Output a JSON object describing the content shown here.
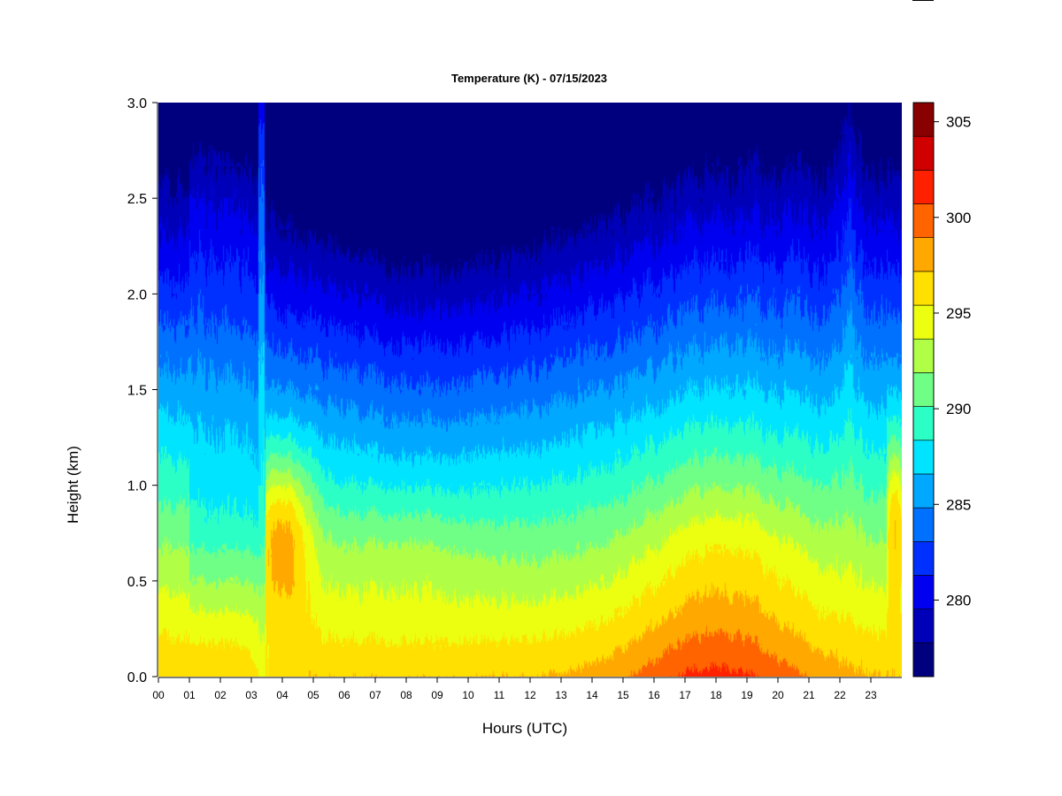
{
  "chart_data": {
    "type": "heatmap",
    "title": "Temperature (K) - 07/15/2023",
    "xlabel": "Hours (UTC)",
    "ylabel": "Height (km)",
    "xlim": [
      0,
      24
    ],
    "ylim": [
      0,
      3
    ],
    "x_ticks": [
      "00",
      "01",
      "02",
      "03",
      "04",
      "05",
      "06",
      "07",
      "08",
      "09",
      "10",
      "11",
      "12",
      "13",
      "14",
      "15",
      "16",
      "17",
      "18",
      "19",
      "20",
      "21",
      "22",
      "23"
    ],
    "y_ticks": [
      "0.0",
      "0.5",
      "1.0",
      "1.5",
      "2.0",
      "2.5",
      "3.0"
    ],
    "colorbar": {
      "min": 276,
      "max": 306,
      "level_step": 2,
      "tick_values": [
        280,
        285,
        290,
        295,
        300,
        305
      ],
      "tick_labels": [
        "280",
        "285",
        "290",
        "295",
        "300",
        "305"
      ],
      "colors": [
        "#00007f",
        "#0000b8",
        "#0000f0",
        "#0030ff",
        "#0070ff",
        "#00a8ff",
        "#00e4ff",
        "#2cffc6",
        "#70ff86",
        "#b0ff46",
        "#ecff10",
        "#ffe000",
        "#ffa800",
        "#ff6400",
        "#ff2000",
        "#d00000",
        "#880000"
      ]
    },
    "field_description": {
      "surface_temperature_by_hour_K": [
        [
          0,
          297
        ],
        [
          3,
          293
        ],
        [
          4,
          296
        ],
        [
          6,
          296
        ],
        [
          9,
          296
        ],
        [
          12,
          297
        ],
        [
          15,
          299
        ],
        [
          18,
          301
        ],
        [
          21,
          300
        ],
        [
          23,
          297
        ]
      ],
      "warm_nose_0_5_to_1_km_K": [
        [
          4,
          303
        ],
        [
          5,
          300
        ],
        [
          7,
          298
        ],
        [
          23.7,
          302
        ]
      ]
    }
  }
}
